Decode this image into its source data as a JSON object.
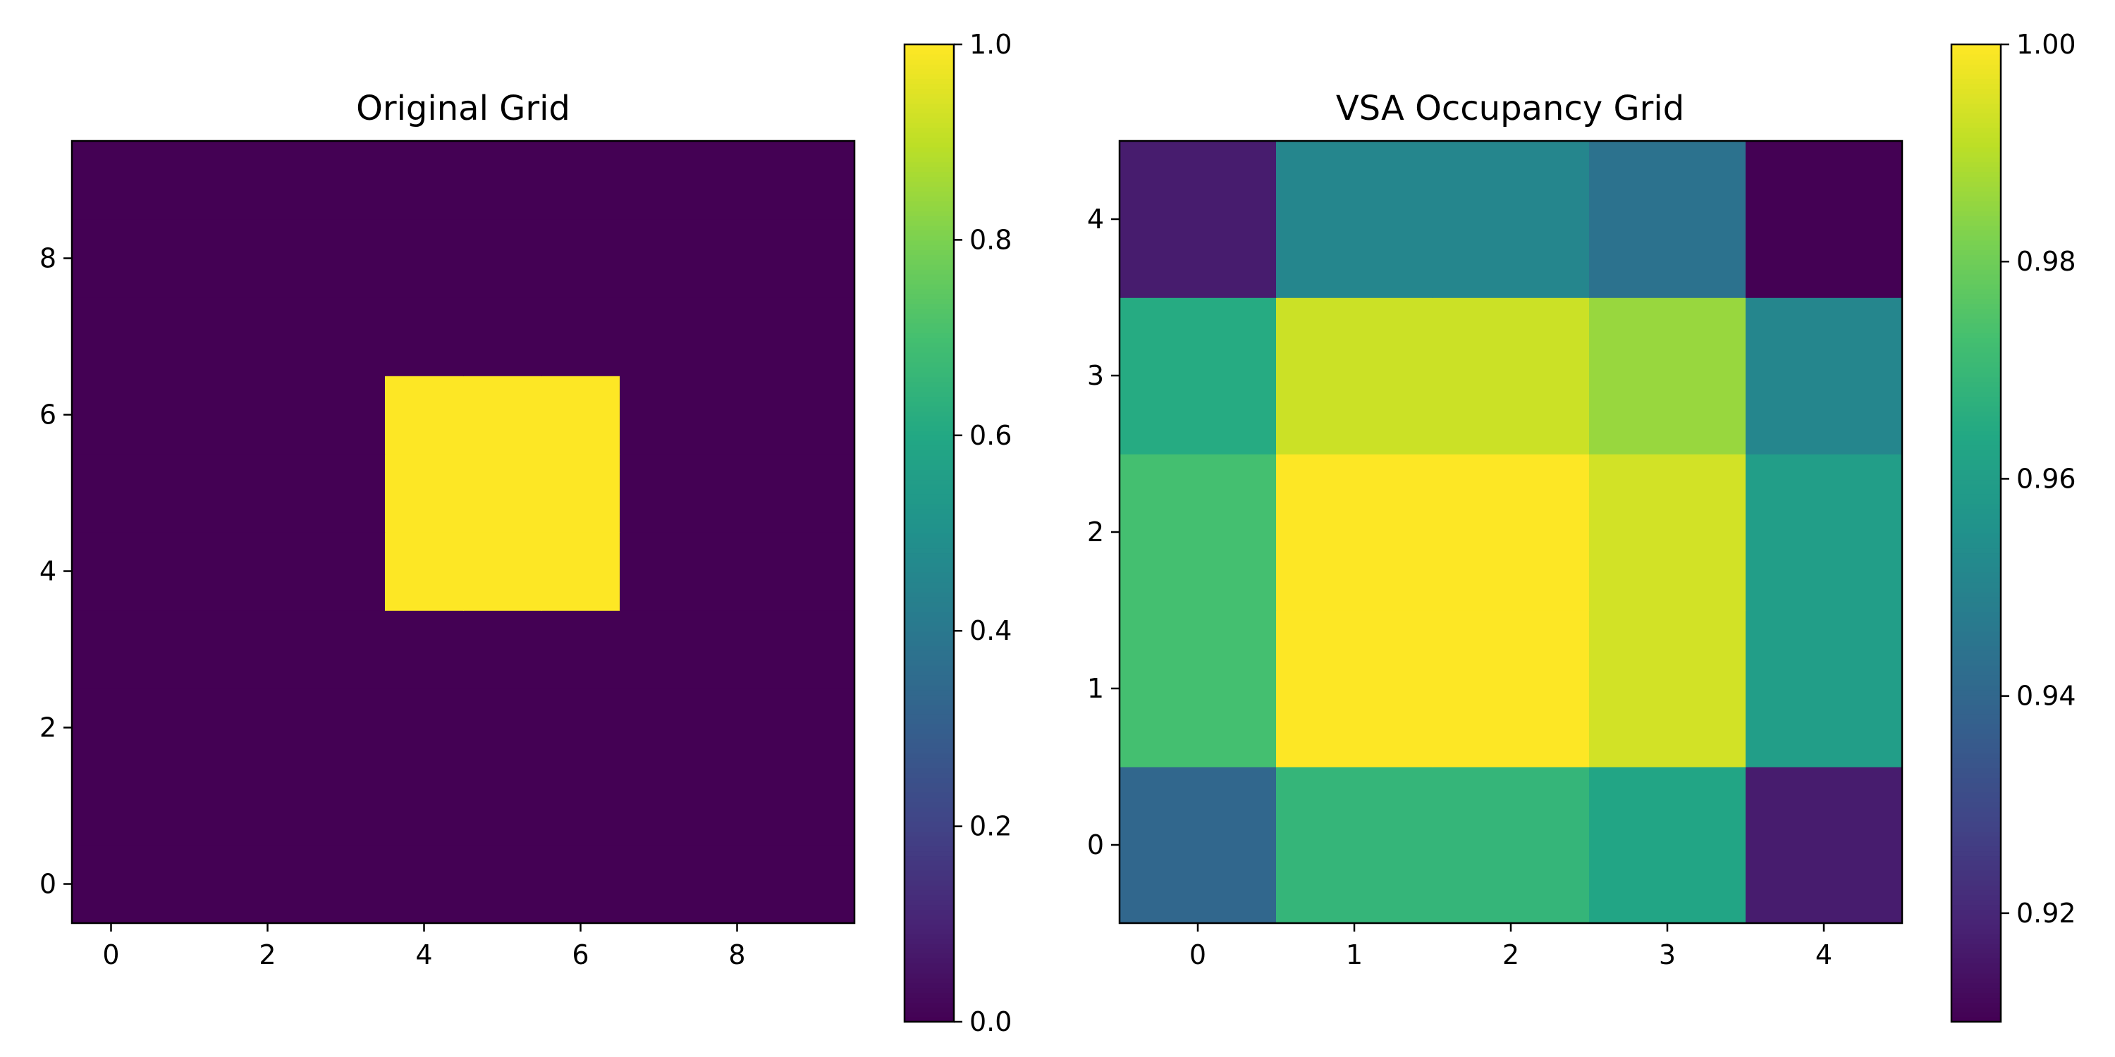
{
  "chart_data": [
    {
      "type": "heatmap",
      "title": "Original Grid",
      "colormap": "viridis",
      "origin": "lower",
      "xlim": [
        -0.5,
        9.5
      ],
      "ylim": [
        -0.5,
        9.5
      ],
      "xticks": [
        0,
        2,
        4,
        6,
        8
      ],
      "yticks": [
        0,
        2,
        4,
        6,
        8
      ],
      "xtick_labels": [
        "0",
        "2",
        "4",
        "6",
        "8"
      ],
      "ytick_labels": [
        "0",
        "2",
        "4",
        "6",
        "8"
      ],
      "values": [
        [
          0,
          0,
          0,
          0,
          0,
          0,
          0,
          0,
          0,
          0
        ],
        [
          0,
          0,
          0,
          0,
          0,
          0,
          0,
          0,
          0,
          0
        ],
        [
          0,
          0,
          0,
          0,
          0,
          0,
          0,
          0,
          0,
          0
        ],
        [
          0,
          0,
          0,
          0,
          0,
          0,
          0,
          0,
          0,
          0
        ],
        [
          0,
          0,
          0,
          0,
          1,
          1,
          1,
          0,
          0,
          0
        ],
        [
          0,
          0,
          0,
          0,
          1,
          1,
          1,
          0,
          0,
          0
        ],
        [
          0,
          0,
          0,
          0,
          1,
          1,
          1,
          0,
          0,
          0
        ],
        [
          0,
          0,
          0,
          0,
          0,
          0,
          0,
          0,
          0,
          0
        ],
        [
          0,
          0,
          0,
          0,
          0,
          0,
          0,
          0,
          0,
          0
        ],
        [
          0,
          0,
          0,
          0,
          0,
          0,
          0,
          0,
          0,
          0
        ]
      ],
      "colorbar": {
        "vmin": 0.0,
        "vmax": 1.0,
        "ticks": [
          0.0,
          0.2,
          0.4,
          0.6,
          0.8,
          1.0
        ],
        "tick_labels": [
          "0.0",
          "0.2",
          "0.4",
          "0.6",
          "0.8",
          "1.0"
        ]
      }
    },
    {
      "type": "heatmap",
      "title": "VSA Occupancy Grid",
      "colormap": "viridis",
      "origin": "lower",
      "xlim": [
        -0.5,
        4.5
      ],
      "ylim": [
        -0.5,
        4.5
      ],
      "xticks": [
        0,
        1,
        2,
        3,
        4
      ],
      "yticks": [
        0,
        1,
        2,
        3,
        4
      ],
      "xtick_labels": [
        "0",
        "1",
        "2",
        "3",
        "4"
      ],
      "ytick_labels": [
        "0",
        "1",
        "2",
        "3",
        "4"
      ],
      "values": [
        [
          0.94,
          0.969,
          0.969,
          0.963,
          0.917
        ],
        [
          0.973,
          1.0,
          1.0,
          0.994,
          0.96
        ],
        [
          0.973,
          1.0,
          1.0,
          0.994,
          0.96
        ],
        [
          0.965,
          0.993,
          0.993,
          0.986,
          0.951
        ],
        [
          0.917,
          0.951,
          0.951,
          0.944,
          0.91
        ]
      ],
      "colorbar": {
        "vmin": 0.91,
        "vmax": 1.0,
        "ticks": [
          0.92,
          0.94,
          0.96,
          0.98,
          1.0
        ],
        "tick_labels": [
          "0.92",
          "0.94",
          "0.96",
          "0.98",
          "1.00"
        ]
      }
    }
  ]
}
